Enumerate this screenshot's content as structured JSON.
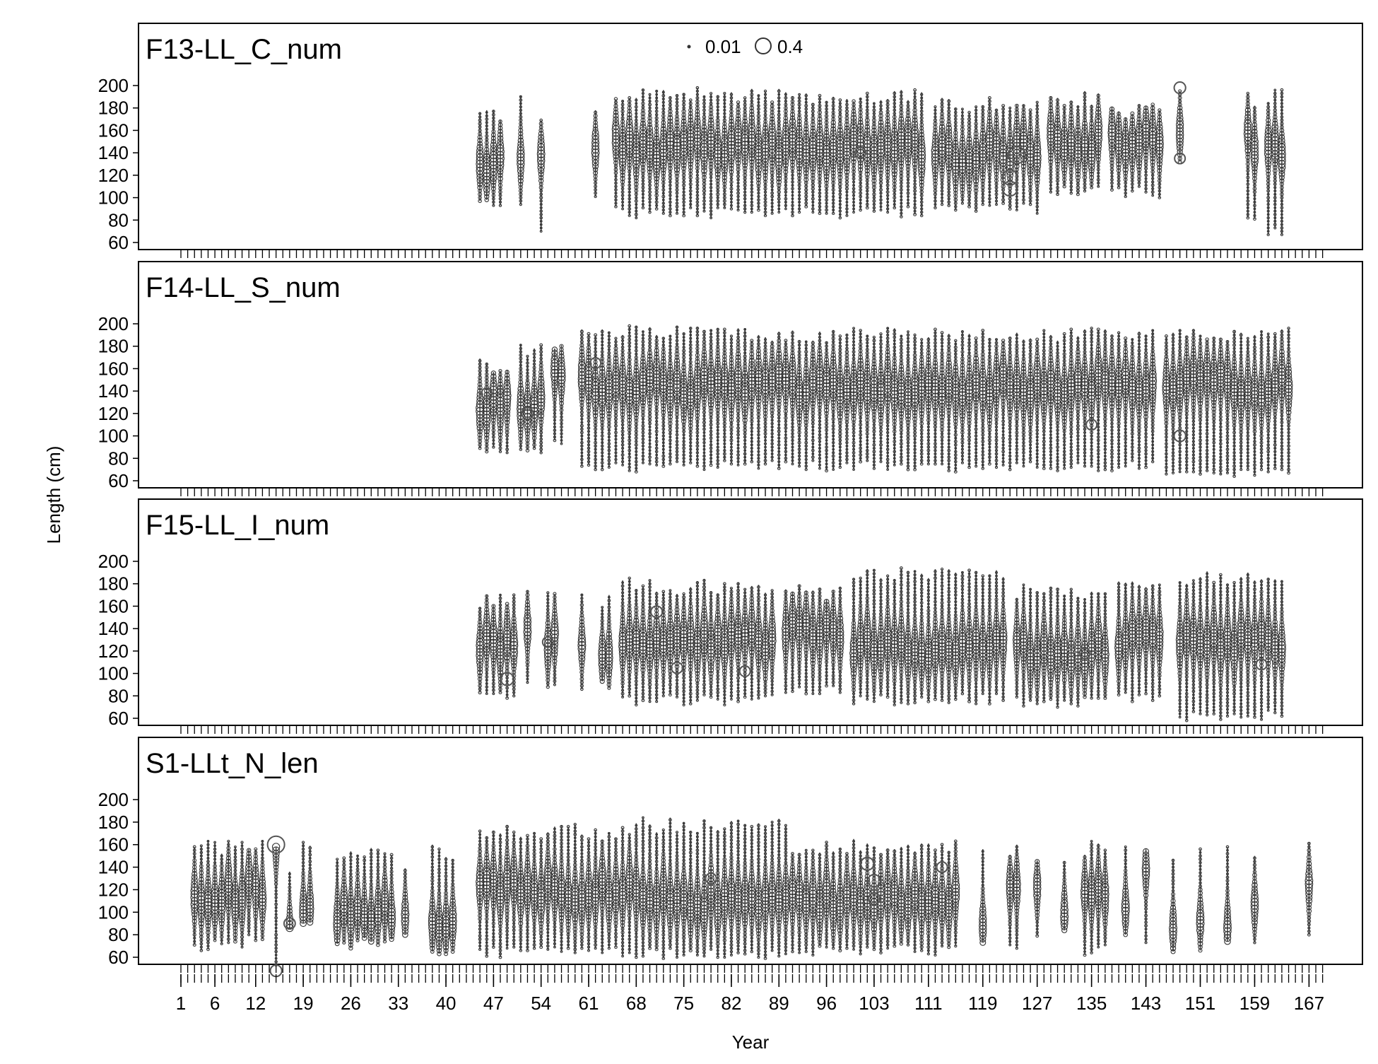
{
  "chart_data": {
    "type": "scatter",
    "subtype": "bubble",
    "xlabel": "Year",
    "ylabel": "Length (cm)",
    "xlim": [
      1,
      170
    ],
    "ylim": [
      60,
      200
    ],
    "x_tick_labels": [
      1,
      6,
      12,
      19,
      26,
      33,
      40,
      47,
      54,
      61,
      68,
      75,
      82,
      89,
      96,
      103,
      111,
      119,
      127,
      135,
      143,
      151,
      159,
      167
    ],
    "y_tick_labels": [
      60,
      80,
      100,
      120,
      140,
      160,
      180,
      200
    ],
    "legend": {
      "entries": [
        {
          "value": 0.01,
          "label": "0.01"
        },
        {
          "value": 0.4,
          "label": "0.4"
        }
      ],
      "position": "top-center"
    },
    "panels": [
      {
        "name": "F13-LL_C_num",
        "label": "F13-LL_C_num",
        "segments": [
          {
            "x_start": 45,
            "x_end": 48,
            "length_min": 90,
            "length_max": 180,
            "mode": 128
          },
          {
            "x_start": 51,
            "x_end": 51,
            "length_min": 85,
            "length_max": 195,
            "mode": 145
          },
          {
            "x_start": 54,
            "x_end": 54,
            "length_min": 70,
            "length_max": 178,
            "mode": 140
          },
          {
            "x_start": 62,
            "x_end": 62,
            "length_min": 100,
            "length_max": 185,
            "mode": 145
          },
          {
            "x_start": 65,
            "x_end": 110,
            "length_min": 82,
            "length_max": 198,
            "mode": 145
          },
          {
            "x_start": 112,
            "x_end": 127,
            "length_min": 85,
            "length_max": 190,
            "mode": 140
          },
          {
            "x_start": 129,
            "x_end": 136,
            "length_min": 100,
            "length_max": 195,
            "mode": 150
          },
          {
            "x_start": 138,
            "x_end": 145,
            "length_min": 100,
            "length_max": 185,
            "mode": 150
          },
          {
            "x_start": 148,
            "x_end": 148,
            "length_min": 130,
            "length_max": 198,
            "mode": 165
          },
          {
            "x_start": 158,
            "x_end": 159,
            "length_min": 80,
            "length_max": 195,
            "mode": 150
          },
          {
            "x_start": 161,
            "x_end": 163,
            "length_min": 65,
            "length_max": 198,
            "mode": 140
          }
        ],
        "large_bubbles": [
          {
            "x": 124,
            "length": 138,
            "size": 0.4
          },
          {
            "x": 123,
            "length": 118,
            "size": 0.3
          },
          {
            "x": 123,
            "length": 108,
            "size": 0.28
          },
          {
            "x": 148,
            "length": 198,
            "size": 0.15
          },
          {
            "x": 148,
            "length": 135,
            "size": 0.12
          },
          {
            "x": 101,
            "length": 140,
            "size": 0.12
          }
        ]
      },
      {
        "name": "F14-LL_S_num",
        "label": "F14-LL_S_num",
        "segments": [
          {
            "x_start": 45,
            "x_end": 49,
            "length_min": 85,
            "length_max": 170,
            "mode": 130
          },
          {
            "x_start": 51,
            "x_end": 54,
            "length_min": 80,
            "length_max": 185,
            "mode": 130
          },
          {
            "x_start": 56,
            "x_end": 57,
            "length_min": 90,
            "length_max": 185,
            "mode": 150
          },
          {
            "x_start": 60,
            "x_end": 144,
            "length_min": 68,
            "length_max": 198,
            "mode": 145
          },
          {
            "x_start": 146,
            "x_end": 164,
            "length_min": 62,
            "length_max": 198,
            "mode": 145
          }
        ],
        "large_bubbles": [
          {
            "x": 52,
            "length": 120,
            "size": 0.15
          },
          {
            "x": 46,
            "length": 138,
            "size": 0.12
          },
          {
            "x": 62,
            "length": 165,
            "size": 0.12
          },
          {
            "x": 148,
            "length": 100,
            "size": 0.15
          },
          {
            "x": 135,
            "length": 110,
            "size": 0.12
          }
        ]
      },
      {
        "name": "F15-LL_I_num",
        "label": "F15-LL_I_num",
        "segments": [
          {
            "x_start": 45,
            "x_end": 50,
            "length_min": 78,
            "length_max": 172,
            "mode": 125
          },
          {
            "x_start": 52,
            "x_end": 52,
            "length_min": 85,
            "length_max": 175,
            "mode": 130
          },
          {
            "x_start": 55,
            "x_end": 56,
            "length_min": 85,
            "length_max": 175,
            "mode": 128
          },
          {
            "x_start": 60,
            "x_end": 60,
            "length_min": 80,
            "length_max": 178,
            "mode": 125
          },
          {
            "x_start": 63,
            "x_end": 64,
            "length_min": 85,
            "length_max": 172,
            "mode": 118
          },
          {
            "x_start": 66,
            "x_end": 88,
            "length_min": 72,
            "length_max": 185,
            "mode": 130
          },
          {
            "x_start": 90,
            "x_end": 98,
            "length_min": 80,
            "length_max": 180,
            "mode": 138
          },
          {
            "x_start": 100,
            "x_end": 122,
            "length_min": 72,
            "length_max": 195,
            "mode": 125
          },
          {
            "x_start": 124,
            "x_end": 137,
            "length_min": 70,
            "length_max": 180,
            "mode": 120
          },
          {
            "x_start": 139,
            "x_end": 145,
            "length_min": 75,
            "length_max": 190,
            "mode": 130
          },
          {
            "x_start": 148,
            "x_end": 163,
            "length_min": 58,
            "length_max": 193,
            "mode": 128
          }
        ],
        "large_bubbles": [
          {
            "x": 49,
            "length": 95,
            "size": 0.2
          },
          {
            "x": 71,
            "length": 155,
            "size": 0.15
          },
          {
            "x": 74,
            "length": 105,
            "size": 0.14
          },
          {
            "x": 55,
            "length": 128,
            "size": 0.12
          },
          {
            "x": 84,
            "length": 102,
            "size": 0.12
          },
          {
            "x": 134,
            "length": 118,
            "size": 0.12
          },
          {
            "x": 160,
            "length": 108,
            "size": 0.12
          }
        ]
      },
      {
        "name": "S1-LLt_N_len",
        "label": "S1-LLt_N_len",
        "segments": [
          {
            "x_start": 3,
            "x_end": 10,
            "length_min": 65,
            "length_max": 165,
            "mode": 115
          },
          {
            "x_start": 11,
            "x_end": 13,
            "length_min": 70,
            "length_max": 165,
            "mode": 120
          },
          {
            "x_start": 15,
            "x_end": 15,
            "length_min": 48,
            "length_max": 162,
            "mode": 158
          },
          {
            "x_start": 17,
            "x_end": 17,
            "length_min": 85,
            "length_max": 150,
            "mode": 90
          },
          {
            "x_start": 19,
            "x_end": 20,
            "length_min": 85,
            "length_max": 165,
            "mode": 110
          },
          {
            "x_start": 24,
            "x_end": 32,
            "length_min": 68,
            "length_max": 160,
            "mode": 100
          },
          {
            "x_start": 34,
            "x_end": 34,
            "length_min": 75,
            "length_max": 150,
            "mode": 95
          },
          {
            "x_start": 38,
            "x_end": 41,
            "length_min": 58,
            "length_max": 160,
            "mode": 90
          },
          {
            "x_start": 45,
            "x_end": 67,
            "length_min": 60,
            "length_max": 178,
            "mode": 120
          },
          {
            "x_start": 68,
            "x_end": 90,
            "length_min": 58,
            "length_max": 185,
            "mode": 110
          },
          {
            "x_start": 91,
            "x_end": 115,
            "length_min": 62,
            "length_max": 165,
            "mode": 110
          },
          {
            "x_start": 119,
            "x_end": 119,
            "length_min": 70,
            "length_max": 162,
            "mode": 95
          },
          {
            "x_start": 123,
            "x_end": 124,
            "length_min": 65,
            "length_max": 165,
            "mode": 125
          },
          {
            "x_start": 127,
            "x_end": 127,
            "length_min": 75,
            "length_max": 160,
            "mode": 120
          },
          {
            "x_start": 131,
            "x_end": 131,
            "length_min": 80,
            "length_max": 155,
            "mode": 95
          },
          {
            "x_start": 134,
            "x_end": 137,
            "length_min": 62,
            "length_max": 165,
            "mode": 120
          },
          {
            "x_start": 140,
            "x_end": 140,
            "length_min": 70,
            "length_max": 160,
            "mode": 105
          },
          {
            "x_start": 143,
            "x_end": 143,
            "length_min": 65,
            "length_max": 165,
            "mode": 135
          },
          {
            "x_start": 147,
            "x_end": 147,
            "length_min": 65,
            "length_max": 155,
            "mode": 95
          },
          {
            "x_start": 151,
            "x_end": 151,
            "length_min": 65,
            "length_max": 160,
            "mode": 100
          },
          {
            "x_start": 155,
            "x_end": 155,
            "length_min": 65,
            "length_max": 160,
            "mode": 95
          },
          {
            "x_start": 159,
            "x_end": 159,
            "length_min": 65,
            "length_max": 155,
            "mode": 105
          },
          {
            "x_start": 167,
            "x_end": 167,
            "length_min": 80,
            "length_max": 165,
            "mode": 132
          }
        ],
        "large_bubbles": [
          {
            "x": 15,
            "length": 160,
            "size": 0.4
          },
          {
            "x": 15,
            "length": 48,
            "size": 0.15
          },
          {
            "x": 17,
            "length": 90,
            "size": 0.14
          },
          {
            "x": 102,
            "length": 143,
            "size": 0.2
          },
          {
            "x": 103,
            "length": 128,
            "size": 0.18
          },
          {
            "x": 103,
            "length": 112,
            "size": 0.15
          },
          {
            "x": 113,
            "length": 140,
            "size": 0.12
          },
          {
            "x": 79,
            "length": 130,
            "size": 0.12
          }
        ]
      }
    ]
  }
}
